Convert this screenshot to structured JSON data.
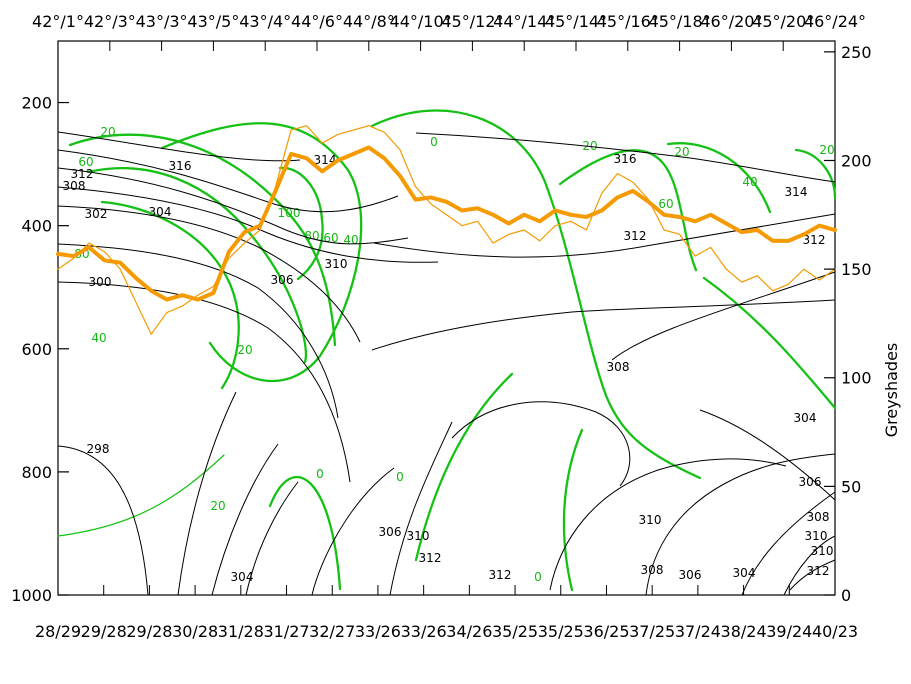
{
  "chart_data": {
    "type": "line",
    "title": "",
    "left_axis": {
      "label": "",
      "ticks": [
        "200",
        "400",
        "600",
        "800",
        "1000"
      ],
      "range": [
        1000,
        100
      ],
      "inverted": true
    },
    "right_axis": {
      "label": "Greyshades",
      "ticks": [
        "0",
        "50",
        "100",
        "150",
        "200",
        "250"
      ],
      "range": [
        0,
        255
      ]
    },
    "top_axis_labels": [
      "42°/1°",
      "42°/3°",
      "43°/3°",
      "43°/5°",
      "43°/4°",
      "44°/6°",
      "44°/8°",
      "44°/10°",
      "45°/12°",
      "44°/14°",
      "45°/14°",
      "45°/16°",
      "45°/18°",
      "46°/20°",
      "45°/20°",
      "46°/24°"
    ],
    "bottom_axis_labels": [
      "28/29",
      "29/28",
      "29/28",
      "30/28",
      "31/28",
      "31/27",
      "32/27",
      "33/26",
      "33/26",
      "34/26",
      "35/25",
      "35/25",
      "36/25",
      "37/25",
      "37/24",
      "38/24",
      "39/24",
      "40/23"
    ],
    "series": [
      {
        "name": "",
        "color": "#f59a00",
        "style": "thick",
        "x": [
          0,
          2,
          4,
          6,
          8,
          10,
          12,
          14,
          16,
          18,
          20,
          22,
          24,
          26,
          28,
          30,
          32,
          34,
          36,
          38,
          40,
          42,
          44,
          46,
          48,
          50,
          52,
          54,
          56,
          58,
          60,
          62,
          64,
          66,
          68,
          70,
          72,
          74,
          76,
          78,
          80,
          82,
          84,
          86,
          88,
          90,
          92,
          94,
          96,
          98,
          100
        ],
        "y": [
          157,
          156,
          160,
          154,
          153,
          146,
          140,
          136,
          138,
          136,
          139,
          158,
          167,
          170,
          186,
          203,
          201,
          195,
          200,
          203,
          206,
          201,
          193,
          182,
          183,
          181,
          177,
          178,
          175,
          171,
          175,
          172,
          177,
          175,
          174,
          177,
          183,
          186,
          181,
          175,
          174,
          172,
          175,
          171,
          167,
          168,
          163,
          163,
          166,
          170,
          168
        ]
      },
      {
        "name": "",
        "color": "#f59a00",
        "style": "thin",
        "x": [
          0,
          2,
          4,
          6,
          8,
          10,
          12,
          14,
          16,
          18,
          20,
          22,
          24,
          26,
          28,
          30,
          32,
          34,
          36,
          38,
          40,
          42,
          44,
          46,
          48,
          50,
          52,
          54,
          56,
          58,
          60,
          62,
          64,
          66,
          68,
          70,
          72,
          74,
          76,
          78,
          80,
          82,
          84,
          86,
          88,
          90,
          92,
          94,
          96,
          98,
          100
        ],
        "y": [
          150,
          155,
          162,
          158,
          150,
          135,
          120,
          130,
          133,
          138,
          142,
          155,
          162,
          168,
          188,
          214,
          216,
          208,
          212,
          214,
          216,
          213,
          205,
          188,
          180,
          175,
          170,
          172,
          162,
          166,
          168,
          163,
          170,
          172,
          168,
          185,
          194,
          190,
          182,
          168,
          166,
          156,
          160,
          150,
          144,
          147,
          140,
          143,
          150,
          145,
          150
        ]
      }
    ],
    "contour_labels_black": [
      "316",
      "312",
      "308",
      "302",
      "304",
      "300",
      "298",
      "306",
      "310",
      "314",
      "316",
      "312",
      "314",
      "308",
      "304",
      "306",
      "310",
      "308",
      "304",
      "312",
      "306",
      "308",
      "310",
      "312",
      "304",
      "306",
      "310",
      "312",
      "310",
      "312"
    ],
    "contour_labels_green": [
      "20",
      "60",
      "80",
      "40",
      "100",
      "80",
      "60",
      "40",
      "20",
      "0",
      "20",
      "20",
      "40",
      "60",
      "20",
      "0",
      "0",
      "0",
      "20"
    ],
    "grid": false,
    "colors": {
      "thick_orange": "#f59a00",
      "thin_orange": "#f59a00",
      "green_contours": "#16c116",
      "black_contours": "#000000"
    }
  }
}
